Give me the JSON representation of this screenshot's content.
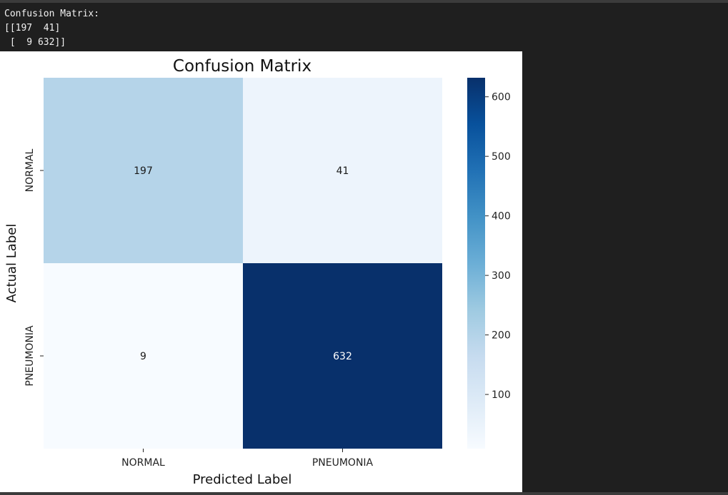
{
  "console": {
    "lines": [
      "Confusion Matrix:",
      "[[197  41]",
      " [  9 632]]"
    ]
  },
  "chart_data": {
    "type": "heatmap",
    "title": "Confusion Matrix",
    "xlabel": "Predicted Label",
    "ylabel": "Actual Label",
    "x_categories": [
      "NORMAL",
      "PNEUMONIA"
    ],
    "y_categories": [
      "NORMAL",
      "PNEUMONIA"
    ],
    "matrix": [
      [
        197,
        41
      ],
      [
        9,
        632
      ]
    ],
    "colorbar": {
      "min": 9,
      "max": 632,
      "ticks": [
        100,
        200,
        300,
        400,
        500,
        600
      ]
    },
    "colormap": "Blues"
  }
}
